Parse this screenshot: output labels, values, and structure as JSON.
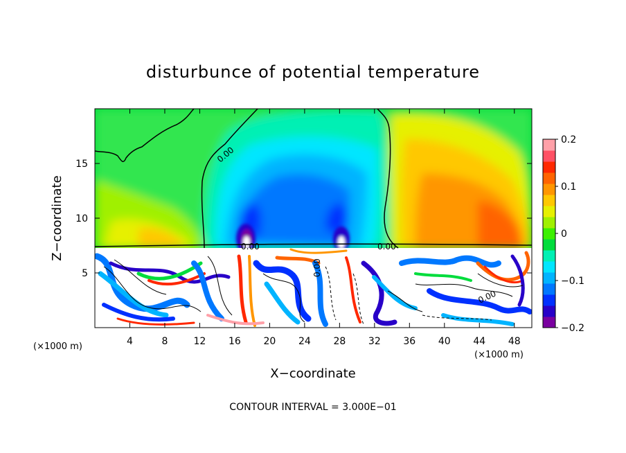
{
  "chart_data": {
    "type": "heatmap",
    "title": "disturbunce of potential temperature",
    "xlabel": "X−coordinate",
    "ylabel": "Z−coordinate",
    "x_unit": "(×1000 m)",
    "z_unit": "(×1000 m)",
    "xlim": [
      0,
      50
    ],
    "ylim": [
      0,
      20
    ],
    "x_ticks": [
      4,
      8,
      12,
      16,
      20,
      24,
      28,
      32,
      36,
      40,
      44,
      48
    ],
    "y_ticks": [
      5,
      10,
      15
    ],
    "footer": "CONTOUR INTERVAL = 3.000E−01",
    "contour_labels": [
      "0.00",
      "0.00",
      "0.00",
      "0.00",
      "0.00"
    ],
    "colorbar": {
      "vmin": -0.2,
      "vmax": 0.2,
      "ticks": [
        {
          "value": 0.2,
          "label": "0.2"
        },
        {
          "value": 0.1,
          "label": "0.1"
        },
        {
          "value": 0,
          "label": "0"
        },
        {
          "value": -0.1,
          "label": "−0.1"
        },
        {
          "value": -0.2,
          "label": "−0.2"
        }
      ],
      "colors": [
        "#7a00a0",
        "#2800c8",
        "#0030ff",
        "#0078ff",
        "#00b4ff",
        "#00e6ff",
        "#00f0b4",
        "#00dc3c",
        "#3cf000",
        "#a0f000",
        "#e6f000",
        "#ffc800",
        "#ff9600",
        "#ff6400",
        "#ff2800",
        "#ff5064",
        "#ffa0a8"
      ]
    }
  }
}
